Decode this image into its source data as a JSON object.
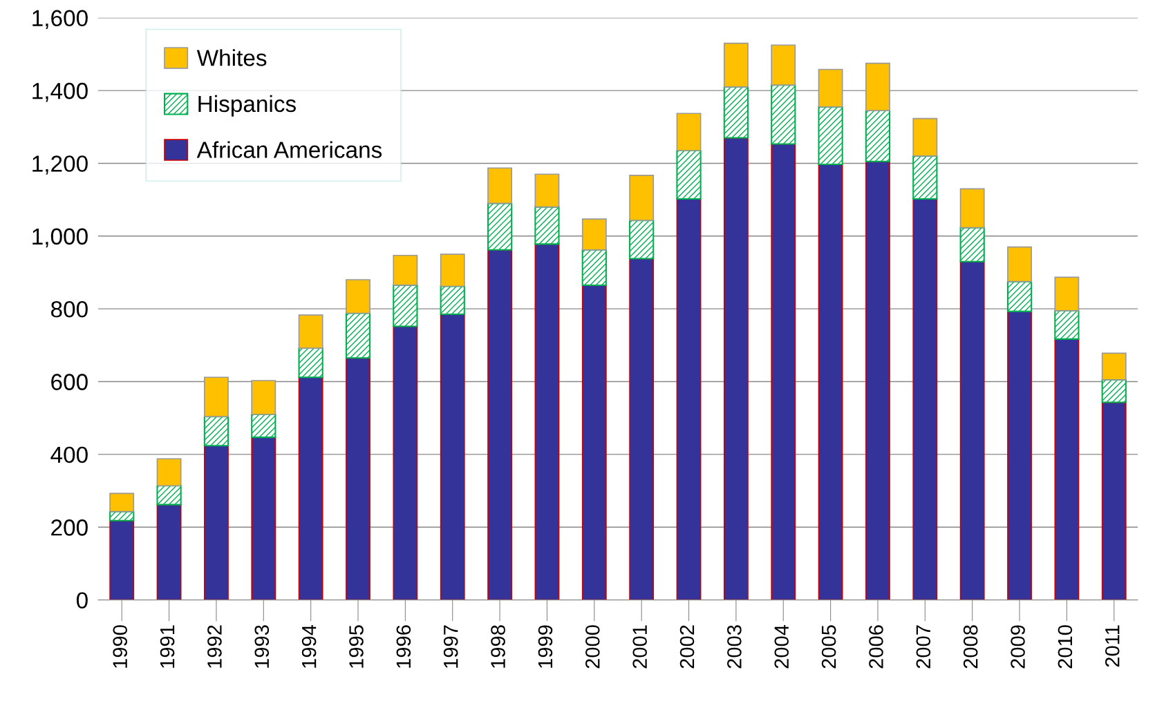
{
  "chart_data": {
    "type": "bar",
    "stacked": true,
    "categories": [
      "1990",
      "1991",
      "1992",
      "1993",
      "1994",
      "1995",
      "1996",
      "1997",
      "1998",
      "1999",
      "2000",
      "2001",
      "2002",
      "2003",
      "2004",
      "2005",
      "2006",
      "2007",
      "2008",
      "2009",
      "2010",
      "2011"
    ],
    "series": [
      {
        "name": "African Americans",
        "color": "#333399",
        "values": [
          218,
          262,
          424,
          447,
          612,
          665,
          752,
          785,
          962,
          978,
          865,
          938,
          1102,
          1270,
          1253,
          1197,
          1205,
          1102,
          930,
          793,
          717,
          543
        ]
      },
      {
        "name": "Hispanics",
        "color": "#00b050",
        "values": [
          25,
          52,
          80,
          63,
          80,
          123,
          113,
          77,
          128,
          102,
          97,
          105,
          133,
          140,
          162,
          158,
          140,
          118,
          93,
          82,
          78,
          62
        ]
      },
      {
        "name": "Whites",
        "color": "#ffc000",
        "values": [
          50,
          74,
          108,
          93,
          91,
          92,
          82,
          88,
          97,
          90,
          85,
          124,
          102,
          120,
          110,
          103,
          130,
          103,
          107,
          95,
          92,
          73
        ]
      }
    ],
    "ylim": [
      0,
      1600
    ],
    "yticks": [
      {
        "value": 0,
        "label": "0"
      },
      {
        "value": 200,
        "label": "200"
      },
      {
        "value": 400,
        "label": "400"
      },
      {
        "value": 600,
        "label": "600"
      },
      {
        "value": 800,
        "label": "800"
      },
      {
        "value": 1000,
        "label": "1,000"
      },
      {
        "value": 1200,
        "label": "1,200"
      },
      {
        "value": 1400,
        "label": "1,400"
      },
      {
        "value": 1600,
        "label": "1,600"
      }
    ],
    "grid": "y",
    "legend": "top left"
  }
}
